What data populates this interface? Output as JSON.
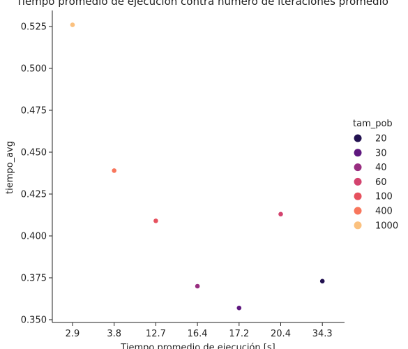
{
  "chart_data": {
    "type": "scatter",
    "title": "Tiempo promedio de ejecución contra número de iteraciones promedio",
    "xlabel": "Tiempo promedio de ejecución [s]",
    "ylabel": "tiempo_avg",
    "categories": [
      "2.9",
      "3.8",
      "12.7",
      "16.4",
      "17.2",
      "20.4",
      "34.3"
    ],
    "ylim": [
      0.35,
      0.535
    ],
    "yticks": [
      "0.350",
      "0.375",
      "0.400",
      "0.425",
      "0.450",
      "0.475",
      "0.500",
      "0.525"
    ],
    "grid": false,
    "legend": {
      "title": "tam_pob",
      "placement": "right",
      "entries": [
        {
          "label": "20",
          "color": "#221150"
        },
        {
          "label": "30",
          "color": "#5f187f"
        },
        {
          "label": "40",
          "color": "#982d80"
        },
        {
          "label": "60",
          "color": "#d3436e"
        },
        {
          "label": "100",
          "color": "#e6515e"
        },
        {
          "label": "400",
          "color": "#f8765c"
        },
        {
          "label": "1000",
          "color": "#fbc17f"
        }
      ]
    },
    "points": [
      {
        "x": "2.9",
        "y": 0.526,
        "tam_pob": "1000",
        "color": "#fbc17f"
      },
      {
        "x": "3.8",
        "y": 0.439,
        "tam_pob": "400",
        "color": "#f8765c"
      },
      {
        "x": "12.7",
        "y": 0.409,
        "tam_pob": "100",
        "color": "#e6515e"
      },
      {
        "x": "16.4",
        "y": 0.37,
        "tam_pob": "40",
        "color": "#982d80"
      },
      {
        "x": "17.2",
        "y": 0.357,
        "tam_pob": "30",
        "color": "#5f187f"
      },
      {
        "x": "20.4",
        "y": 0.413,
        "tam_pob": "60",
        "color": "#d3436e"
      },
      {
        "x": "34.3",
        "y": 0.373,
        "tam_pob": "20",
        "color": "#221150"
      }
    ]
  }
}
